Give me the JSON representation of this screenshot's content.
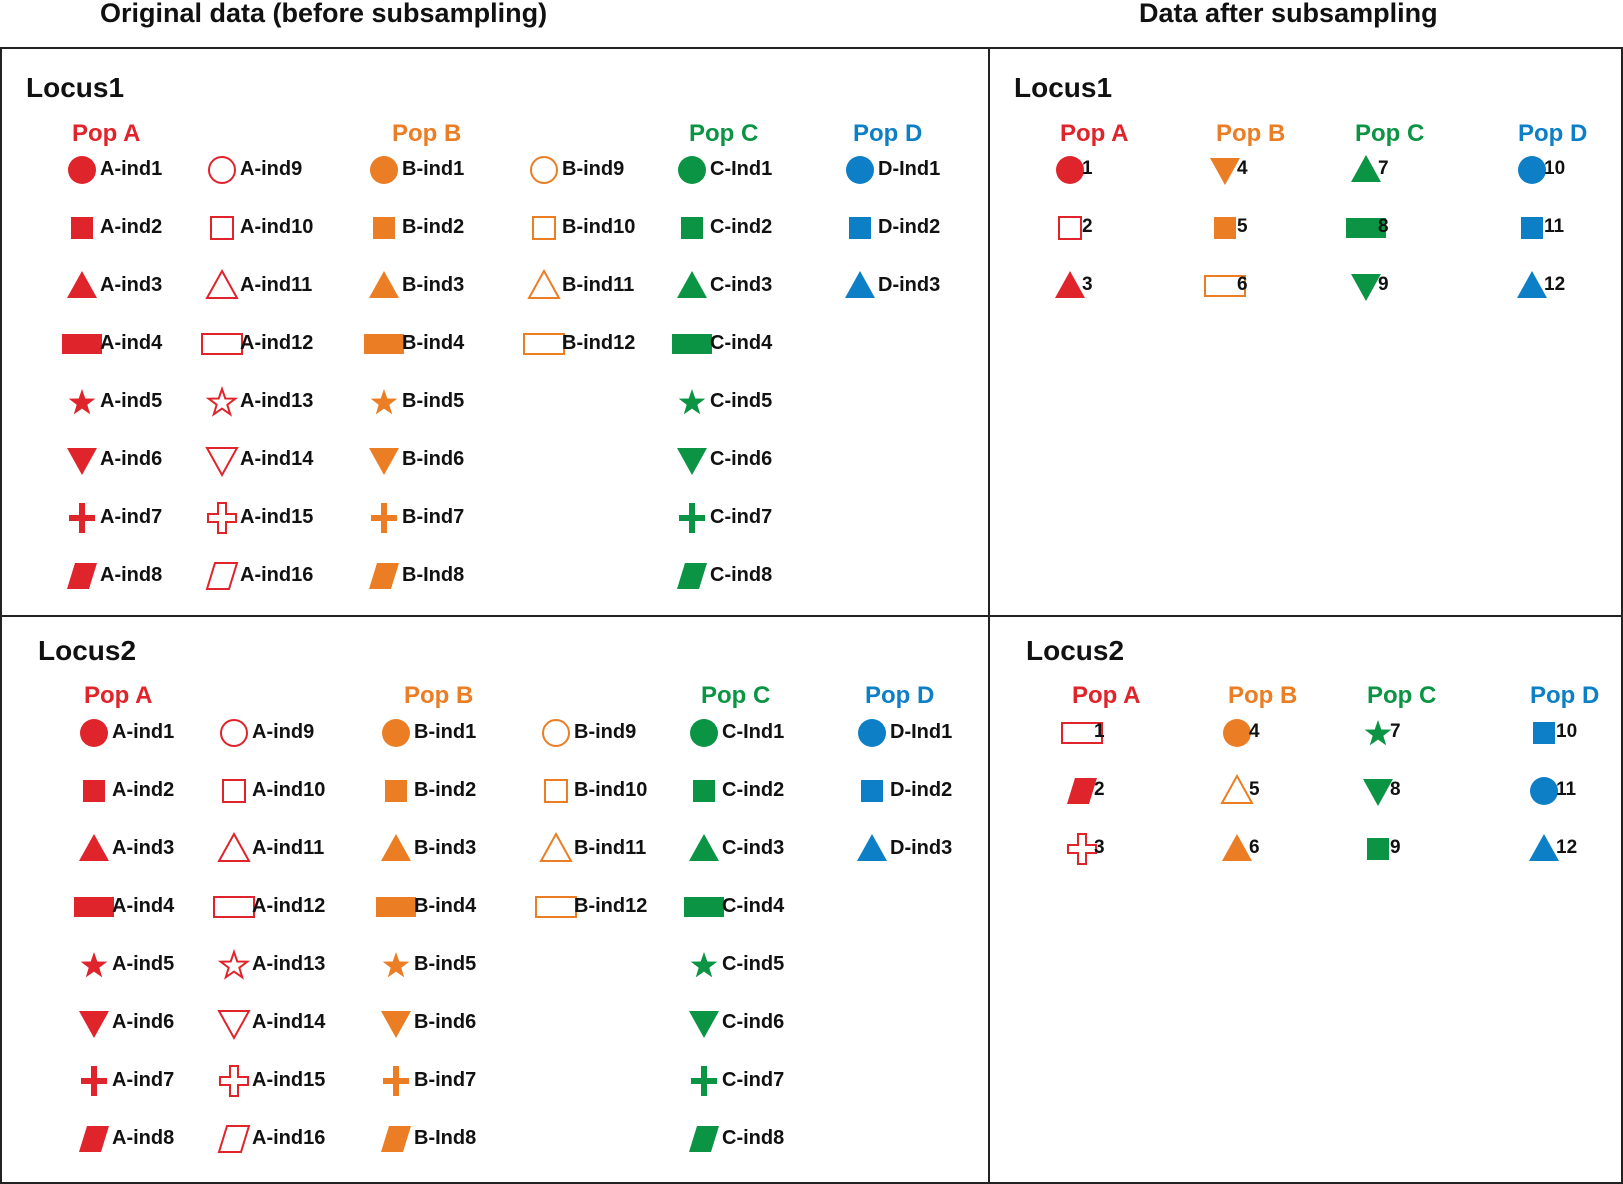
{
  "headings": {
    "original": "Original data (before subsampling)",
    "subsampled": "Data after subsampling"
  },
  "colors": {
    "A": "#e0242b",
    "B": "#eb7d24",
    "C": "#0b9444",
    "D": "#0d7fc6"
  },
  "panels": [
    {
      "id": "orig-locus1",
      "title": "Locus1",
      "pops": [
        {
          "pop": "A",
          "label": "Pop A",
          "columns": [
            [
              [
                "circle",
                1,
                "A-ind1"
              ],
              [
                "square",
                1,
                "A-ind2"
              ],
              [
                "triangle",
                1,
                "A-ind3"
              ],
              [
                "rect",
                1,
                "A-ind4"
              ],
              [
                "star",
                1,
                "A-ind5"
              ],
              [
                "triangle-down",
                1,
                "A-ind6"
              ],
              [
                "cross",
                1,
                "A-ind7"
              ],
              [
                "parallelogram",
                1,
                "A-ind8"
              ]
            ],
            [
              [
                "circle",
                0,
                "A-ind9"
              ],
              [
                "square",
                0,
                "A-ind10"
              ],
              [
                "triangle",
                0,
                "A-ind11"
              ],
              [
                "rect",
                0,
                "A-ind12"
              ],
              [
                "star",
                0,
                "A-ind13"
              ],
              [
                "triangle-down",
                0,
                "A-ind14"
              ],
              [
                "cross",
                0,
                "A-ind15"
              ],
              [
                "parallelogram",
                0,
                "A-ind16"
              ]
            ]
          ]
        },
        {
          "pop": "B",
          "label": "Pop B",
          "columns": [
            [
              [
                "circle",
                1,
                "B-ind1"
              ],
              [
                "square",
                1,
                "B-ind2"
              ],
              [
                "triangle",
                1,
                "B-ind3"
              ],
              [
                "rect",
                1,
                "B-ind4"
              ],
              [
                "star",
                1,
                "B-ind5"
              ],
              [
                "triangle-down",
                1,
                "B-ind6"
              ],
              [
                "cross",
                1,
                "B-ind7"
              ],
              [
                "parallelogram",
                1,
                "B-Ind8"
              ]
            ],
            [
              [
                "circle",
                0,
                "B-ind9"
              ],
              [
                "square",
                0,
                "B-ind10"
              ],
              [
                "triangle",
                0,
                "B-ind11"
              ],
              [
                "rect",
                0,
                "B-ind12"
              ]
            ]
          ]
        },
        {
          "pop": "C",
          "label": "Pop C",
          "columns": [
            [
              [
                "circle",
                1,
                "C-Ind1"
              ],
              [
                "square",
                1,
                "C-ind2"
              ],
              [
                "triangle",
                1,
                "C-ind3"
              ],
              [
                "rect",
                1,
                "C-ind4"
              ],
              [
                "star",
                1,
                "C-ind5"
              ],
              [
                "triangle-down",
                1,
                "C-ind6"
              ],
              [
                "cross",
                1,
                "C-ind7"
              ],
              [
                "parallelogram",
                1,
                "C-ind8"
              ]
            ]
          ]
        },
        {
          "pop": "D",
          "label": "Pop D",
          "columns": [
            [
              [
                "circle",
                1,
                "D-Ind1"
              ],
              [
                "square",
                1,
                "D-ind2"
              ],
              [
                "triangle",
                1,
                "D-ind3"
              ]
            ]
          ]
        }
      ]
    },
    {
      "id": "sub-locus1",
      "title": "Locus1",
      "pops": [
        {
          "pop": "A",
          "label": "Pop A",
          "columns": [
            [
              [
                "circle",
                1,
                "1"
              ],
              [
                "square",
                0,
                "2"
              ],
              [
                "triangle",
                1,
                "3"
              ]
            ]
          ]
        },
        {
          "pop": "B",
          "label": "Pop B",
          "columns": [
            [
              [
                "triangle-down",
                1,
                "4"
              ],
              [
                "square",
                1,
                "5"
              ],
              [
                "rect",
                0,
                "6"
              ]
            ]
          ]
        },
        {
          "pop": "C",
          "label": "Pop C",
          "columns": [
            [
              [
                "triangle",
                1,
                "7"
              ],
              [
                "rect",
                1,
                "8"
              ],
              [
                "triangle-down",
                1,
                "9"
              ]
            ]
          ]
        },
        {
          "pop": "D",
          "label": "Pop D",
          "columns": [
            [
              [
                "circle",
                1,
                "10"
              ],
              [
                "square",
                1,
                "11"
              ],
              [
                "triangle",
                1,
                "12"
              ]
            ]
          ]
        }
      ]
    },
    {
      "id": "orig-locus2",
      "title": "Locus2",
      "pops": [
        {
          "pop": "A",
          "label": "Pop A",
          "columns": [
            [
              [
                "circle",
                1,
                "A-ind1"
              ],
              [
                "square",
                1,
                "A-ind2"
              ],
              [
                "triangle",
                1,
                "A-ind3"
              ],
              [
                "rect",
                1,
                "A-ind4"
              ],
              [
                "star",
                1,
                "A-ind5"
              ],
              [
                "triangle-down",
                1,
                "A-ind6"
              ],
              [
                "cross",
                1,
                "A-ind7"
              ],
              [
                "parallelogram",
                1,
                "A-ind8"
              ]
            ],
            [
              [
                "circle",
                0,
                "A-ind9"
              ],
              [
                "square",
                0,
                "A-ind10"
              ],
              [
                "triangle",
                0,
                "A-ind11"
              ],
              [
                "rect",
                0,
                "A-ind12"
              ],
              [
                "star",
                0,
                "A-ind13"
              ],
              [
                "triangle-down",
                0,
                "A-ind14"
              ],
              [
                "cross",
                0,
                "A-ind15"
              ],
              [
                "parallelogram",
                0,
                "A-ind16"
              ]
            ]
          ]
        },
        {
          "pop": "B",
          "label": "Pop B",
          "columns": [
            [
              [
                "circle",
                1,
                "B-ind1"
              ],
              [
                "square",
                1,
                "B-ind2"
              ],
              [
                "triangle",
                1,
                "B-ind3"
              ],
              [
                "rect",
                1,
                "B-ind4"
              ],
              [
                "star",
                1,
                "B-ind5"
              ],
              [
                "triangle-down",
                1,
                "B-ind6"
              ],
              [
                "cross",
                1,
                "B-ind7"
              ],
              [
                "parallelogram",
                1,
                "B-Ind8"
              ]
            ],
            [
              [
                "circle",
                0,
                "B-ind9"
              ],
              [
                "square",
                0,
                "B-ind10"
              ],
              [
                "triangle",
                0,
                "B-ind11"
              ],
              [
                "rect",
                0,
                "B-ind12"
              ]
            ]
          ]
        },
        {
          "pop": "C",
          "label": "Pop C",
          "columns": [
            [
              [
                "circle",
                1,
                "C-Ind1"
              ],
              [
                "square",
                1,
                "C-ind2"
              ],
              [
                "triangle",
                1,
                "C-ind3"
              ],
              [
                "rect",
                1,
                "C-ind4"
              ],
              [
                "star",
                1,
                "C-ind5"
              ],
              [
                "triangle-down",
                1,
                "C-ind6"
              ],
              [
                "cross",
                1,
                "C-ind7"
              ],
              [
                "parallelogram",
                1,
                "C-ind8"
              ]
            ]
          ]
        },
        {
          "pop": "D",
          "label": "Pop D",
          "columns": [
            [
              [
                "circle",
                1,
                "D-Ind1"
              ],
              [
                "square",
                1,
                "D-ind2"
              ],
              [
                "triangle",
                1,
                "D-ind3"
              ]
            ]
          ]
        }
      ]
    },
    {
      "id": "sub-locus2",
      "title": "Locus2",
      "pops": [
        {
          "pop": "A",
          "label": "Pop A",
          "columns": [
            [
              [
                "rect",
                0,
                "1"
              ],
              [
                "parallelogram",
                1,
                "2"
              ],
              [
                "cross",
                0,
                "3"
              ]
            ]
          ]
        },
        {
          "pop": "B",
          "label": "Pop B",
          "columns": [
            [
              [
                "circle",
                1,
                "4"
              ],
              [
                "triangle",
                0,
                "5"
              ],
              [
                "triangle",
                1,
                "6"
              ]
            ]
          ]
        },
        {
          "pop": "C",
          "label": "Pop C",
          "columns": [
            [
              [
                "star",
                1,
                "7"
              ],
              [
                "triangle-down",
                1,
                "8"
              ],
              [
                "square",
                1,
                "9"
              ]
            ]
          ]
        },
        {
          "pop": "D",
          "label": "Pop D",
          "columns": [
            [
              [
                "square",
                1,
                "10"
              ],
              [
                "circle",
                1,
                "11"
              ],
              [
                "triangle",
                1,
                "12"
              ]
            ]
          ]
        }
      ]
    }
  ]
}
